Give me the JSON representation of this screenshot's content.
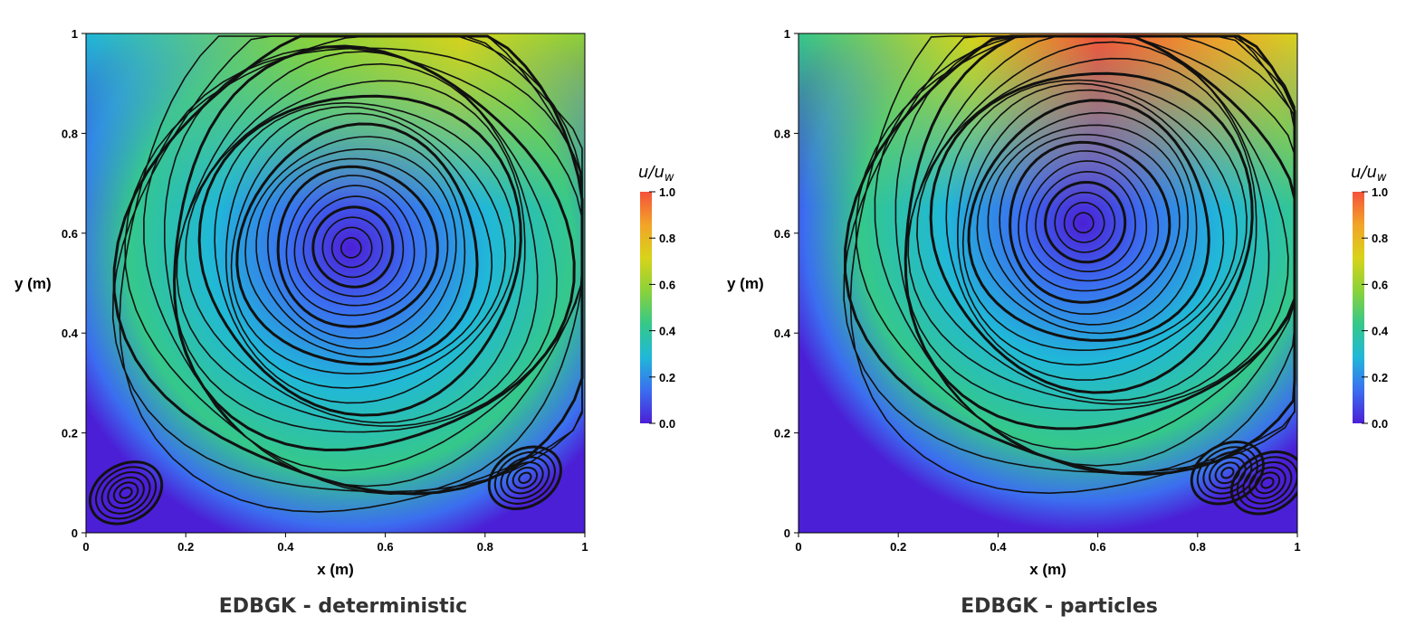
{
  "colorscale": [
    "#4B1FD6",
    "#3B6EF0",
    "#20B8D8",
    "#35C88A",
    "#8AD23A",
    "#D8D31A",
    "#F2A428",
    "#F5523A"
  ],
  "colorbar": {
    "title": "u/u",
    "title_sub": "w",
    "ticks": [
      "0.0",
      "0.2",
      "0.4",
      "0.6",
      "0.8",
      "1.0"
    ],
    "range": [
      0,
      1
    ]
  },
  "chart_data": [
    {
      "type": "heatmap",
      "caption": "EDBGK - deterministic",
      "xlabel": "x (m)",
      "ylabel": "y (m)",
      "xlim": [
        0,
        1
      ],
      "ylim": [
        0,
        1
      ],
      "xticks": [
        "0",
        "0.2",
        "0.4",
        "0.6",
        "0.8",
        "1"
      ],
      "yticks": [
        "0",
        "0.2",
        "0.4",
        "0.6",
        "0.8",
        "1"
      ],
      "primary_vortex_center": [
        0.53,
        0.57
      ],
      "secondary_vortices": [
        [
          0.08,
          0.08
        ],
        [
          0.88,
          0.11
        ]
      ],
      "max_velocity_ratio": 0.8
    },
    {
      "type": "heatmap",
      "caption": "EDBGK - particles",
      "xlabel": "x (m)",
      "ylabel": "y (m)",
      "xlim": [
        0,
        1
      ],
      "ylim": [
        0,
        1
      ],
      "xticks": [
        "0",
        "0.2",
        "0.4",
        "0.6",
        "0.8",
        "1"
      ],
      "yticks": [
        "0",
        "0.2",
        "0.4",
        "0.6",
        "0.8",
        "1"
      ],
      "primary_vortex_center": [
        0.57,
        0.62
      ],
      "secondary_vortices": [
        [
          0.86,
          0.12
        ],
        [
          0.94,
          0.1
        ]
      ],
      "max_velocity_ratio": 1.0
    }
  ]
}
